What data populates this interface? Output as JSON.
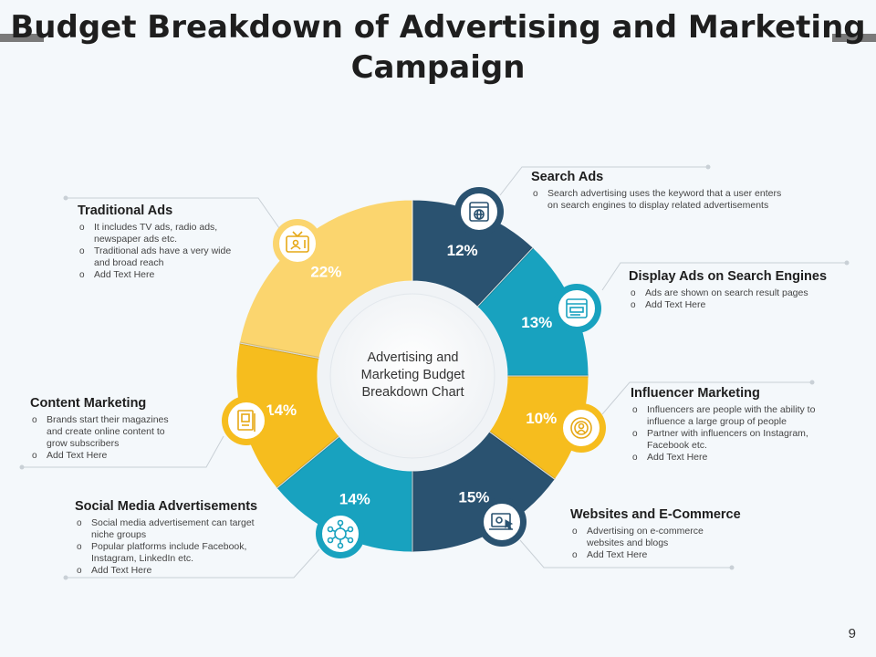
{
  "title": "Budget Breakdown of Advertising and Marketing Campaign",
  "page_number": "9",
  "center_label": "Advertising and Marketing Budget Breakdown Chart",
  "colors": {
    "navy": "#2a5270",
    "teal": "#18a2bf",
    "gold": "#f6bd1e",
    "light_gold": "#fbd56e"
  },
  "chart_data": {
    "type": "pie",
    "donut": true,
    "categories": [
      "Search Ads",
      "Display Ads on Search Engines",
      "Influencer Marketing",
      "Websites and E-Commerce",
      "Social Media Advertisements",
      "Content Marketing",
      "Traditional Ads"
    ],
    "values": [
      12,
      13,
      10,
      15,
      14,
      14,
      22
    ],
    "labels": [
      "12%",
      "13%",
      "10%",
      "15%",
      "14%",
      "14%",
      "22%"
    ],
    "slice_colors": [
      "#2a5270",
      "#18a2bf",
      "#f6bd1e",
      "#2a5270",
      "#18a2bf",
      "#f6bd1e",
      "#fbd56e"
    ],
    "start": "top",
    "direction": "clockwise"
  },
  "blocks": {
    "search_ads": {
      "title": "Search Ads",
      "icon": "globe-browser-icon",
      "bullets": [
        "Search advertising uses the keyword that a user enters",
        "on search engines to display related advertisements"
      ]
    },
    "display_ads": {
      "title": "Display Ads on Search Engines",
      "icon": "browser-window-icon",
      "bullets": [
        "Ads are shown on search result pages",
        "Add Text Here"
      ]
    },
    "influencer": {
      "title": "Influencer Marketing",
      "icon": "influencer-target-icon",
      "bullets": [
        "Influencers are people with the ability to influence a large group of people",
        "Partner with influencers on Instagram, Facebook etc.",
        "Add Text Here"
      ]
    },
    "websites": {
      "title": "Websites and E-Commerce",
      "icon": "laptop-cursor-icon",
      "bullets": [
        "Advertising on e-commerce websites and blogs",
        "Add Text Here"
      ]
    },
    "social": {
      "title": "Social Media Advertisements",
      "icon": "network-user-icon",
      "bullets": [
        "Social media advertisement can target niche groups",
        "Popular platforms include Facebook, Instagram, LinkedIn etc.",
        "Add Text Here"
      ]
    },
    "content": {
      "title": "Content Marketing",
      "icon": "magazine-icon",
      "bullets": [
        "Brands start their magazines and create online content to grow subscribers",
        "Add Text Here"
      ]
    },
    "traditional": {
      "title": "Traditional Ads",
      "icon": "tv-icon",
      "bullets": [
        "It includes TV ads, radio ads, newspaper ads etc.",
        "Traditional ads have a very wide and broad reach",
        "Add Text Here"
      ]
    }
  }
}
